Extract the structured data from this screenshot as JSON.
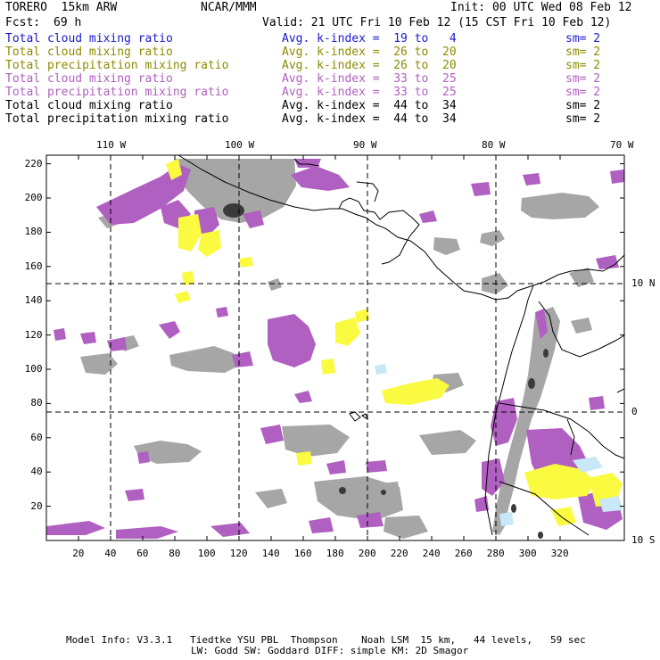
{
  "header": {
    "model": "TORERO  15km ARW",
    "org": "NCAR/MMM",
    "init": "Init: 00 UTC Wed 08 Feb 12",
    "fcst_label": "Fcst:",
    "fcst_value": "69 h",
    "valid": "Valid: 21 UTC Fri 10 Feb 12 (15 CST Fri 10 Feb 12)"
  },
  "legend": [
    {
      "field": "Total cloud mixing ratio",
      "kidx": "Avg. k-index =  19 to   4",
      "sm": "sm= 2",
      "color": "#1a1acc"
    },
    {
      "field": "Total cloud mixing ratio",
      "kidx": "Avg. k-index =  26 to  20",
      "sm": "sm= 2",
      "color": "#8c8c00"
    },
    {
      "field": "Total precipitation mixing ratio",
      "kidx": "Avg. k-index =  26 to  20",
      "sm": "sm= 2",
      "color": "#8c8c00"
    },
    {
      "field": "Total cloud mixing ratio",
      "kidx": "Avg. k-index =  33 to  25",
      "sm": "sm= 2",
      "color": "#b060c0"
    },
    {
      "field": "Total precipitation mixing ratio",
      "kidx": "Avg. k-index =  33 to  25",
      "sm": "sm= 2",
      "color": "#b060c0"
    },
    {
      "field": "Total cloud mixing ratio",
      "kidx": "Avg. k-index =  44 to  34",
      "sm": "sm= 2",
      "color": "#000000"
    },
    {
      "field": "Total precipitation mixing ratio",
      "kidx": "Avg. k-index =  44 to  34",
      "sm": "sm= 2",
      "color": "#000000"
    }
  ],
  "grid": {
    "x_ticks": [
      "20",
      "40",
      "60",
      "80",
      "100",
      "120",
      "140",
      "160",
      "180",
      "200",
      "220",
      "240",
      "260",
      "280",
      "300",
      "320"
    ],
    "y_ticks": [
      "20",
      "40",
      "60",
      "80",
      "100",
      "120",
      "140",
      "160",
      "180",
      "200",
      "220"
    ],
    "lon_labels": [
      "110 W",
      "100 W",
      "90 W",
      "80 W",
      "70 W"
    ],
    "lat_labels": [
      "10 N",
      "0",
      "10 S"
    ]
  },
  "colors": {
    "magenta": "#b060c0",
    "yellow": "#fafa40",
    "gray": "#a0a0a0",
    "darkgray": "#505050",
    "lightblue": "#c8e8f8"
  },
  "footer": {
    "line1": "Model Info: V3.3.1   Tiedtke YSU PBL  Thompson    Noah LSM  15 km,   44 levels,   59 sec",
    "line2": "LW: Godd SW: Goddard DIFF: simple KM: 2D Smagor"
  }
}
